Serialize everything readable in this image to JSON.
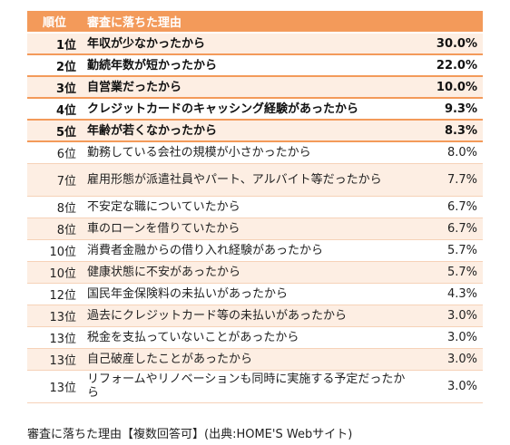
{
  "header": {
    "rank": "順位",
    "reason": "審査に落ちた理由"
  },
  "rows": [
    {
      "rank": "1位",
      "reason": "年収が少なかったから",
      "pct": "30.0%",
      "bold": true
    },
    {
      "rank": "2位",
      "reason": "勤続年数が短かったから",
      "pct": "22.0%",
      "bold": true
    },
    {
      "rank": "3位",
      "reason": "自営業だったから",
      "pct": "10.0%",
      "bold": true
    },
    {
      "rank": "4位",
      "reason": "クレジットカードのキャッシング経験があったから",
      "pct": "9.3%",
      "bold": true
    },
    {
      "rank": "5位",
      "reason": "年齢が若くなかったから",
      "pct": "8.3%",
      "bold": true
    },
    {
      "rank": "6位",
      "reason": "勤務している会社の規模が小さかったから",
      "pct": "8.0%"
    },
    {
      "rank": "7位",
      "reason": "雇用形態が派遣社員やパート、アルバイト等だったから",
      "pct": "7.7%",
      "tall": true
    },
    {
      "rank": "8位",
      "reason": "不安定な職についていたから",
      "pct": "6.7%"
    },
    {
      "rank": "8位",
      "reason": "車のローンを借りていたから",
      "pct": "6.7%"
    },
    {
      "rank": "10位",
      "reason": "消費者金融からの借り入れ経験があったから",
      "pct": "5.7%"
    },
    {
      "rank": "10位",
      "reason": "健康状態に不安があったから",
      "pct": "5.7%"
    },
    {
      "rank": "12位",
      "reason": "国民年金保険料の未払いがあったから",
      "pct": "4.3%"
    },
    {
      "rank": "13位",
      "reason": "過去にクレジットカード等の未払いがあったから",
      "pct": "3.0%"
    },
    {
      "rank": "13位",
      "reason": "税金を支払っていないことがあったから",
      "pct": "3.0%"
    },
    {
      "rank": "13位",
      "reason": "自己破産したことがあったから",
      "pct": "3.0%"
    },
    {
      "rank": "13位",
      "reason": "リフォームやリノベーションも同時に実施する予定だったから",
      "pct": "3.0%",
      "tall": true
    }
  ],
  "caption": "審査に落ちた理由【複数回答可】(出典:HOME'S Webサイト)",
  "colors": {
    "header_bg": "#f39a5a",
    "stripe": "#fdeee3",
    "row_line": "#f6d2b8"
  }
}
